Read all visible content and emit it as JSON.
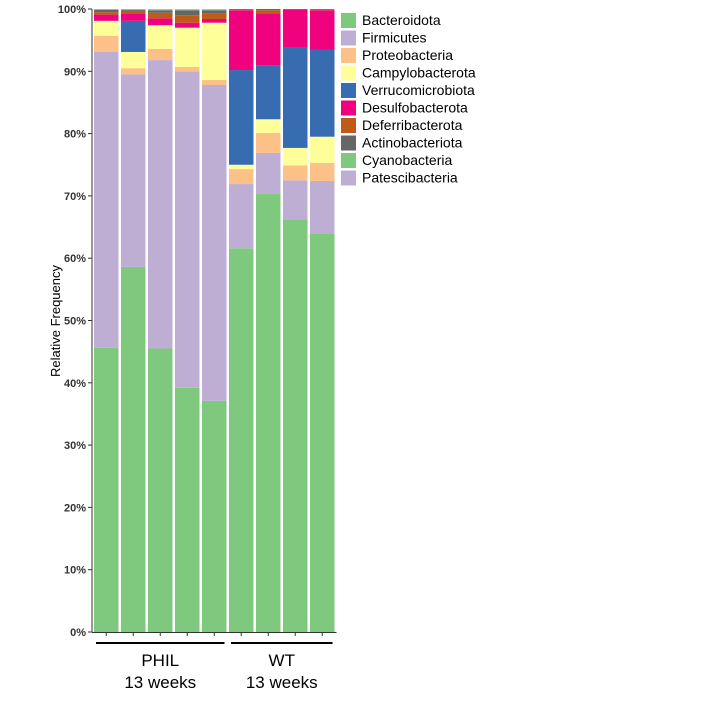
{
  "chart_data": {
    "type": "bar",
    "stacked": true,
    "ylabel": "Relative Frequency",
    "ylim": [
      0,
      100
    ],
    "yticks": [
      "0%",
      "10%",
      "20%",
      "30%",
      "40%",
      "50%",
      "60%",
      "70%",
      "80%",
      "90%",
      "100%"
    ],
    "groups": [
      {
        "label_line1": "PHIL",
        "label_line2": "13 weeks",
        "samples": 5
      },
      {
        "label_line1": "WT",
        "label_line2": "13 weeks",
        "samples": 4
      }
    ],
    "legend_position": "right",
    "series": [
      {
        "name": "Bacteroidota",
        "color": "#7fc97f",
        "values": [
          45.6,
          58.6,
          45.5,
          39.2,
          37.1,
          61.6,
          70.3,
          66.2,
          64.0
        ]
      },
      {
        "name": "Firmicutes",
        "color": "#beaed4",
        "values": [
          47.5,
          30.9,
          46.3,
          50.8,
          50.7,
          10.3,
          6.6,
          6.3,
          8.4
        ]
      },
      {
        "name": "Proteobacteria",
        "color": "#fdc086",
        "values": [
          2.6,
          1.0,
          1.8,
          0.7,
          0.8,
          2.4,
          3.2,
          2.4,
          2.9
        ]
      },
      {
        "name": "Campylobacterota",
        "color": "#ffff99",
        "values": [
          2.4,
          2.6,
          3.8,
          6.3,
          9.2,
          0.7,
          2.2,
          2.8,
          4.2
        ]
      },
      {
        "name": "Verrucomicrobiota",
        "color": "#386cb0",
        "values": [
          0.0,
          5.0,
          0.0,
          0.0,
          0.0,
          15.2,
          8.6,
          16.2,
          14.0
        ]
      },
      {
        "name": "Desulfobacterota",
        "color": "#f0027f",
        "values": [
          1.0,
          1.2,
          1.1,
          0.8,
          0.6,
          9.6,
          8.4,
          6.0,
          6.3
        ]
      },
      {
        "name": "Deferribacterota",
        "color": "#bf5b17",
        "values": [
          0.4,
          0.4,
          0.9,
          1.2,
          0.9,
          0.1,
          0.5,
          0.0,
          0.1
        ]
      },
      {
        "name": "Actinobacteriota",
        "color": "#666666",
        "values": [
          0.4,
          0.2,
          0.4,
          0.8,
          0.5,
          0.1,
          0.2,
          0.1,
          0.1
        ]
      },
      {
        "name": "Cyanobacteria",
        "color": "#7fc97f",
        "values": [
          0.05,
          0.05,
          0.1,
          0.1,
          0.1,
          0.0,
          0.0,
          0.0,
          0.0
        ]
      },
      {
        "name": "Patescibacteria",
        "color": "#beaed4",
        "values": [
          0.05,
          0.05,
          0.1,
          0.1,
          0.1,
          0.0,
          0.0,
          0.0,
          0.0
        ]
      }
    ]
  }
}
